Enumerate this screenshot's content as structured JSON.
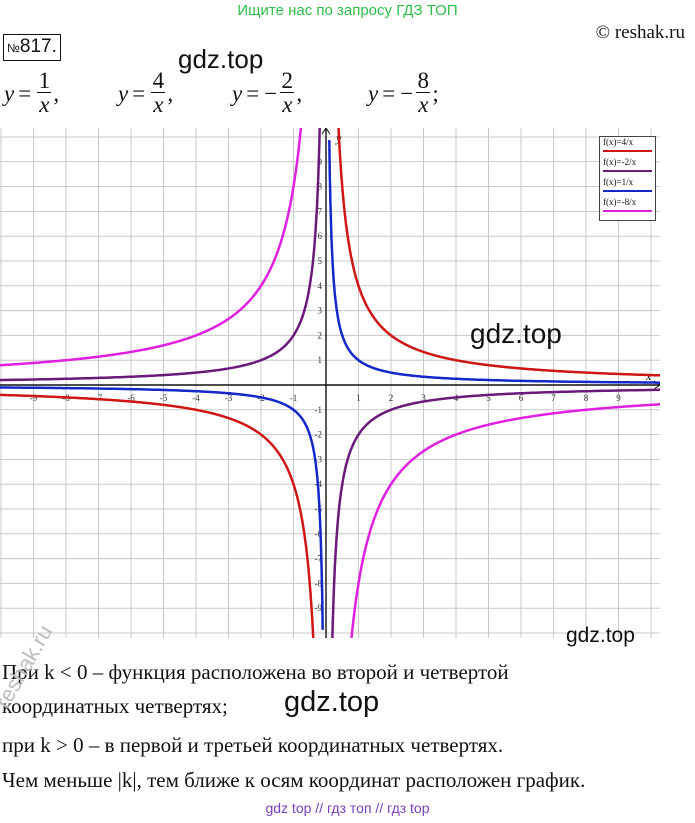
{
  "header": {
    "banner": "Ищите нас по запросу ГДЗ ТОП",
    "site": "© reshak.ru",
    "task_prefix": "№",
    "task_number": "817."
  },
  "watermarks": [
    "gdz.top",
    "gdz.top",
    "gdz.top",
    "gdz.top"
  ],
  "side_watermark": "reshak.ru",
  "formulas": [
    {
      "lhs": "y",
      "eq": "=",
      "sign": "",
      "num": "1",
      "den": "x",
      "tail": ","
    },
    {
      "lhs": "y",
      "eq": "=",
      "sign": "",
      "num": "4",
      "den": "x",
      "tail": ","
    },
    {
      "lhs": "y",
      "eq": "=",
      "sign": "−",
      "num": "2",
      "den": "x",
      "tail": ","
    },
    {
      "lhs": "y",
      "eq": "=",
      "sign": "−",
      "num": "8",
      "den": "x",
      "tail": ";"
    }
  ],
  "chart_data": {
    "type": "line",
    "xlabel": "x",
    "ylabel": "y",
    "xlim": [
      -10,
      10
    ],
    "ylim": [
      -10,
      10
    ],
    "grid": true,
    "x_ticks": [
      -9,
      -8,
      -7,
      -6,
      -5,
      -4,
      -3,
      -2,
      -1,
      1,
      2,
      3,
      4,
      5,
      6,
      7,
      8,
      9
    ],
    "y_ticks": [
      -9,
      -8,
      -7,
      -6,
      -5,
      -4,
      -3,
      -2,
      -1,
      1,
      2,
      3,
      4,
      5,
      6,
      7,
      8,
      9
    ],
    "legend_position": "top-right",
    "series": [
      {
        "name": "f(x)=4/x",
        "k": 4,
        "color": "#d01515"
      },
      {
        "name": "f(x)=-2/x",
        "k": -2,
        "color": "#6a1a7a"
      },
      {
        "name": "f(x)=1/x",
        "k": 1,
        "color": "#1428c8"
      },
      {
        "name": "f(x)=-8/x",
        "k": -8,
        "color": "#e020e0"
      }
    ]
  },
  "text": {
    "line1": "При k < 0 – функция расположена во второй и четвертой",
    "line2": "координатных четвертях;",
    "line3": "при k > 0 – в первой и третьей координатных четвертях.",
    "line4": "Чем меньше |k|, тем ближе к осям координат расположен график."
  },
  "footer": "gdz top  //  гдз топ  //  гдз top"
}
